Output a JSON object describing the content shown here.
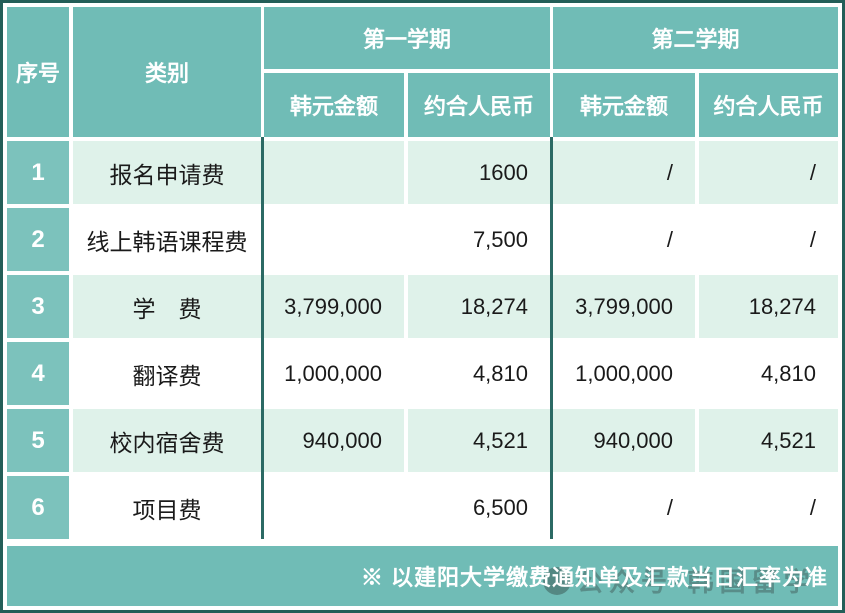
{
  "table": {
    "header": {
      "col_no": "序号",
      "col_category": "类别",
      "semester1": "第一学期",
      "semester2": "第二学期",
      "sub_krw": "韩元金额",
      "sub_rmb": "约合人民币"
    },
    "rows": [
      {
        "no": "1",
        "category": "报名申请费",
        "s1_krw": "",
        "s1_rmb": "1600",
        "s2_krw": "/",
        "s2_rmb": "/"
      },
      {
        "no": "2",
        "category": "线上韩语课程费",
        "s1_krw": "",
        "s1_rmb": "7,500",
        "s2_krw": "/",
        "s2_rmb": "/"
      },
      {
        "no": "3",
        "category": "学　费",
        "s1_krw": "3,799,000",
        "s1_rmb": "18,274",
        "s2_krw": "3,799,000",
        "s2_rmb": "18,274"
      },
      {
        "no": "4",
        "category": "翻译费",
        "s1_krw": "1,000,000",
        "s1_rmb": "4,810",
        "s2_krw": "1,000,000",
        "s2_rmb": "4,810"
      },
      {
        "no": "5",
        "category": "校内宿舍费",
        "s1_krw": "940,000",
        "s1_rmb": "4,521",
        "s2_krw": "940,000",
        "s2_rmb": "4,521"
      },
      {
        "no": "6",
        "category": "项目费",
        "s1_krw": "",
        "s1_rmb": "6,500",
        "s2_krw": "/",
        "s2_rmb": "/"
      }
    ],
    "footer_note": "※ 以建阳大学缴费通知单及汇款当日汇率为准",
    "watermark_text": "公众号·韩国留学"
  },
  "colors": {
    "header_teal": "#70BCB6",
    "index_teal": "#7CC2BC",
    "row_mint": "#DFF2EA",
    "row_white": "#FFFFFF",
    "group_divider": "#2B6A64",
    "outer_border": "#235E58",
    "text_dark": "#1A1A1A"
  }
}
